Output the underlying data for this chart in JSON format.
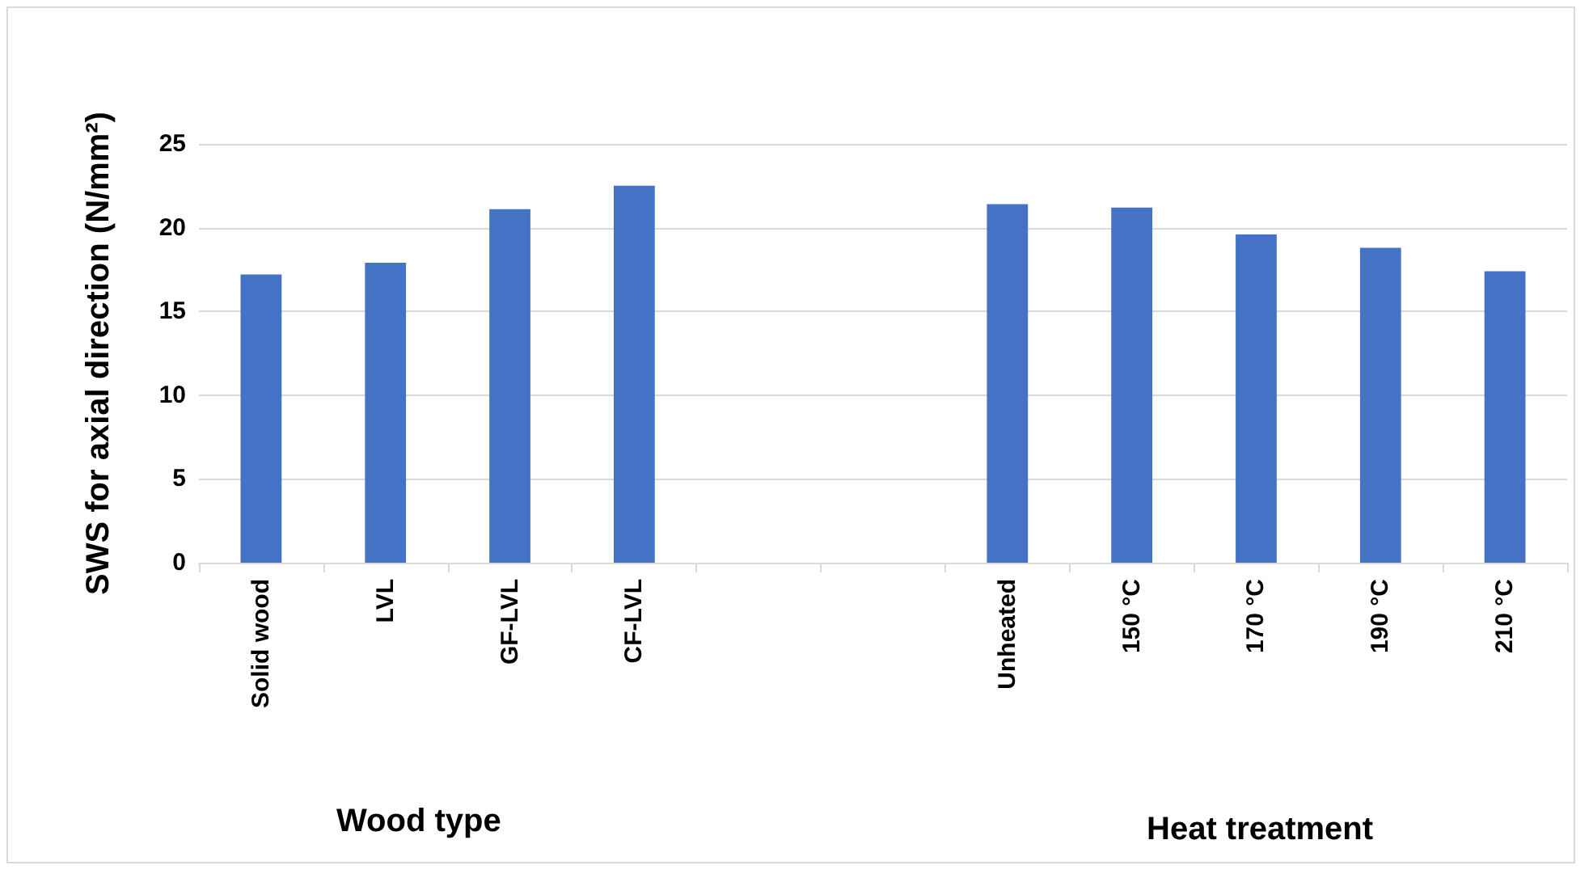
{
  "chart_data": {
    "type": "bar",
    "ylabel": "SWS for axial direction (N/mm²)",
    "categories": [
      "Solid wood",
      "LVL",
      "GF-LVL",
      "CF-LVL",
      null,
      null,
      "Unheated",
      "150 °C",
      "170 °C",
      "190 °C",
      "210 °C"
    ],
    "values": [
      17.2,
      17.9,
      21.1,
      22.5,
      null,
      null,
      21.4,
      21.2,
      19.6,
      18.8,
      17.4
    ],
    "color": "#4472c4",
    "ylim": [
      0,
      25
    ],
    "yticks": [
      0,
      5,
      10,
      15,
      20,
      25
    ],
    "grid": "y",
    "annotations": [
      "Wood type",
      "Heat treatment"
    ]
  }
}
